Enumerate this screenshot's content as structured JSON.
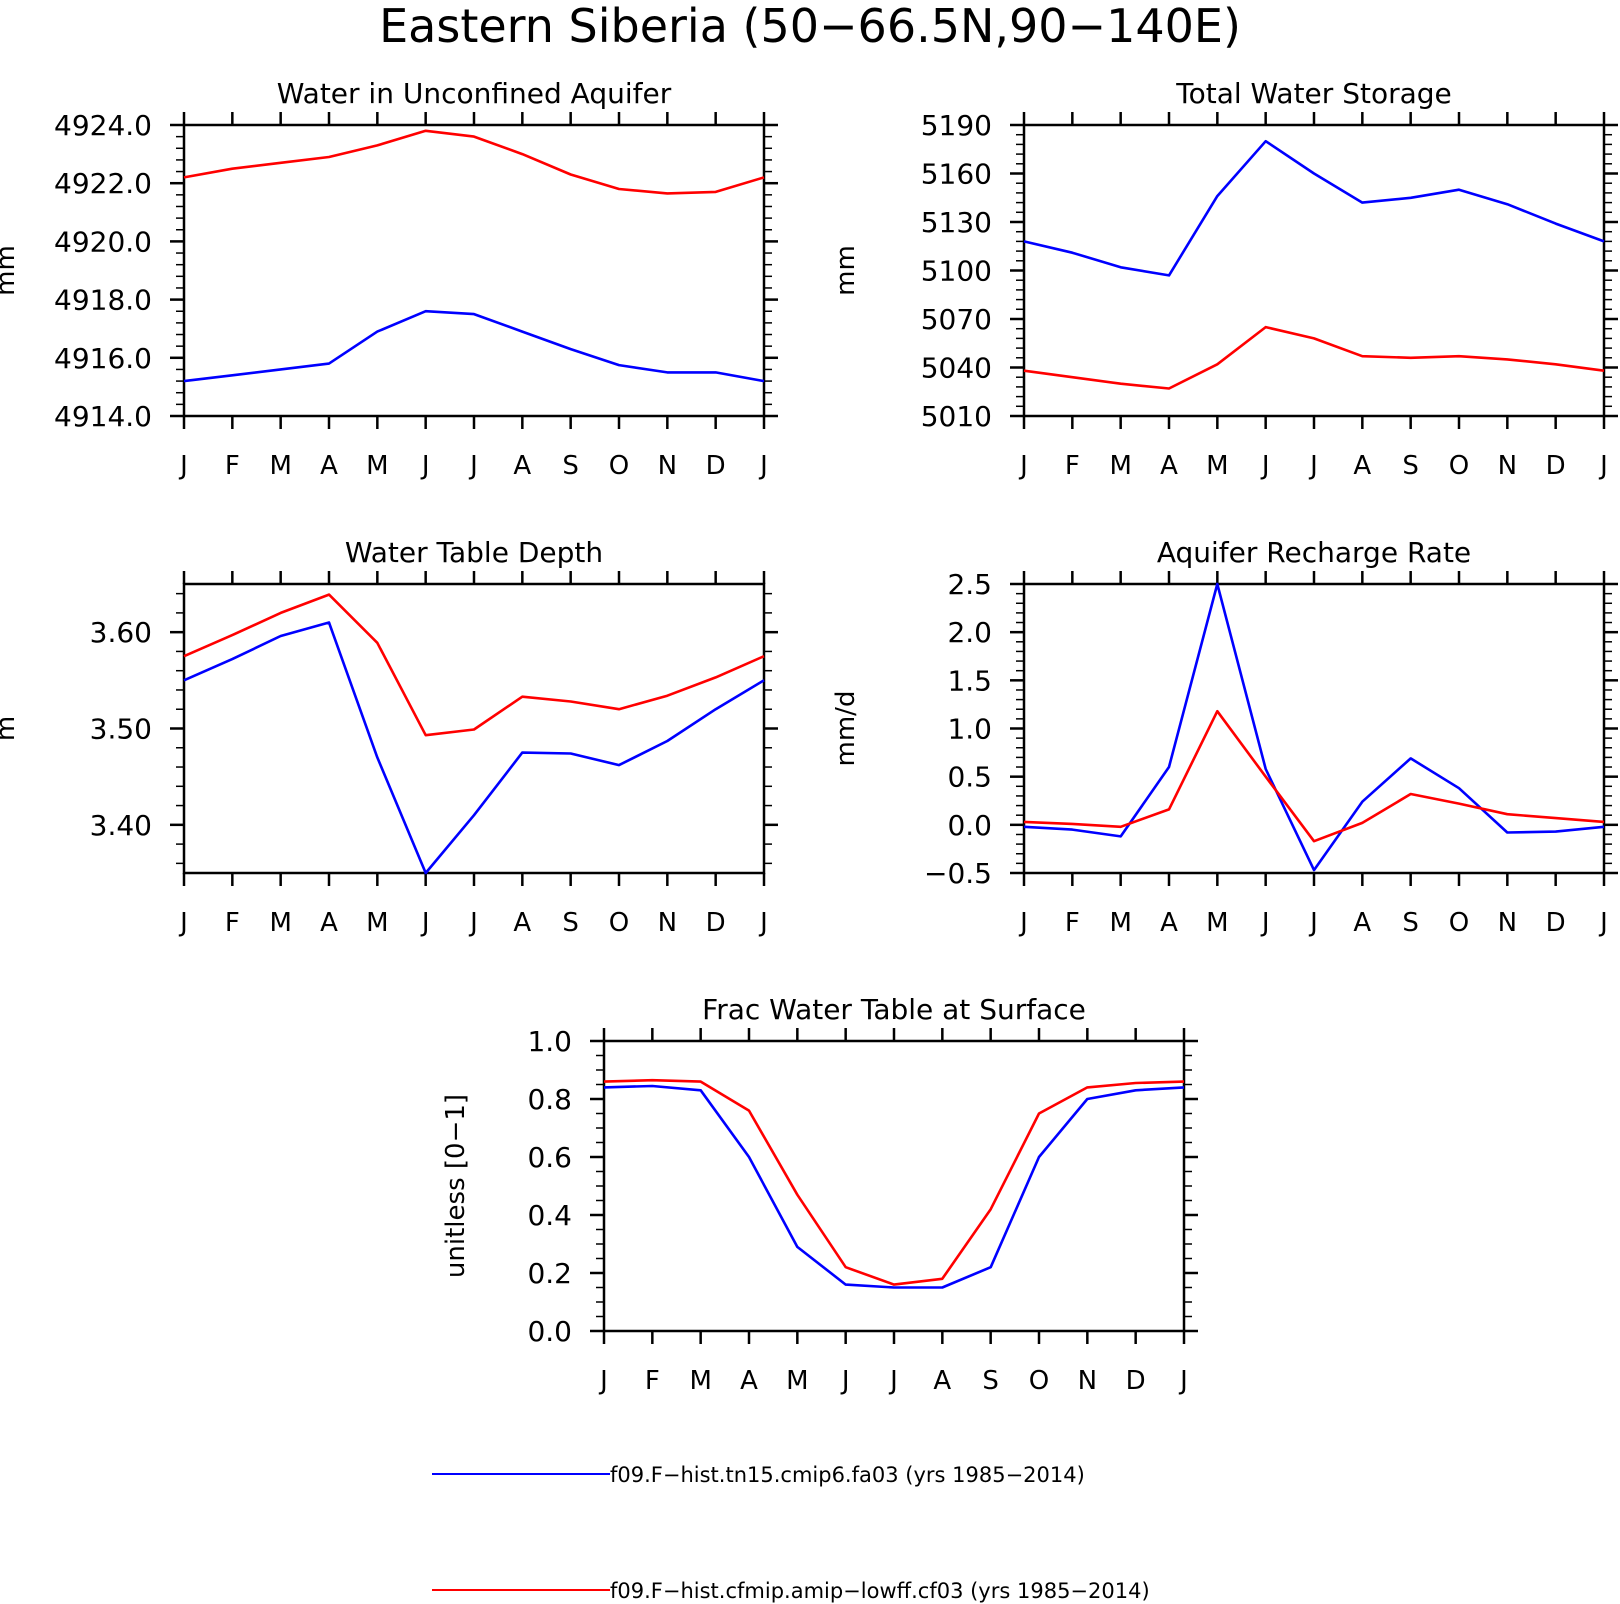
{
  "figure": {
    "title": "Eastern Siberia (50−66.5N,90−140E)"
  },
  "months": [
    "J",
    "F",
    "M",
    "A",
    "M",
    "J",
    "J",
    "A",
    "S",
    "O",
    "N",
    "D",
    "J"
  ],
  "series_styles": [
    {
      "id": "fa03",
      "color": "#0000ff"
    },
    {
      "id": "cf03",
      "color": "#ff0000"
    }
  ],
  "legend": {
    "entries": [
      {
        "label": "f09.F−hist.tn15.cmip6.fa03 (yrs 1985−2014)",
        "color": "#0000ff"
      },
      {
        "label": "f09.F−hist.cfmip.amip−lowff.cf03 (yrs 1985−2014)",
        "color": "#ff0000"
      }
    ]
  },
  "chart_data": [
    {
      "type": "line",
      "title": "Water in Unconfined Aquifer",
      "xlabel": "",
      "ylabel": "mm",
      "x": [
        "J",
        "F",
        "M",
        "A",
        "M",
        "J",
        "J",
        "A",
        "S",
        "O",
        "N",
        "D",
        "J"
      ],
      "ylim": [
        4914.0,
        4924.0
      ],
      "yticks": [
        4914.0,
        4916.0,
        4918.0,
        4920.0,
        4922.0,
        4924.0
      ],
      "ytick_labels": [
        "4914.0",
        "4916.0",
        "4918.0",
        "4920.0",
        "4922.0",
        "4924.0"
      ],
      "minor_per_major": 5,
      "grid": false,
      "series": [
        {
          "name": "f09.F−hist.tn15.cmip6.fa03 (yrs 1985−2014)",
          "color": "#0000ff",
          "values": [
            4915.2,
            4915.4,
            4915.6,
            4915.8,
            4916.9,
            4917.6,
            4917.5,
            4916.9,
            4916.3,
            4915.75,
            4915.5,
            4915.5,
            4915.2
          ]
        },
        {
          "name": "f09.F−hist.cfmip.amip−lowff.cf03 (yrs 1985−2014)",
          "color": "#ff0000",
          "values": [
            4922.2,
            4922.5,
            4922.7,
            4922.9,
            4923.3,
            4923.8,
            4923.6,
            4923.0,
            4922.3,
            4921.8,
            4921.65,
            4921.7,
            4922.2
          ]
        }
      ]
    },
    {
      "type": "line",
      "title": "Total Water Storage",
      "xlabel": "",
      "ylabel": "mm",
      "x": [
        "J",
        "F",
        "M",
        "A",
        "M",
        "J",
        "J",
        "A",
        "S",
        "O",
        "N",
        "D",
        "J"
      ],
      "ylim": [
        5010,
        5190
      ],
      "yticks": [
        5010,
        5040,
        5070,
        5100,
        5130,
        5160,
        5190
      ],
      "ytick_labels": [
        "5010",
        "5040",
        "5070",
        "5100",
        "5130",
        "5160",
        "5190"
      ],
      "minor_per_major": 5,
      "grid": false,
      "series": [
        {
          "name": "f09.F−hist.tn15.cmip6.fa03 (yrs 1985−2014)",
          "color": "#0000ff",
          "values": [
            5118,
            5111,
            5102,
            5097,
            5146,
            5180,
            5160,
            5142,
            5145,
            5150,
            5141,
            5129,
            5118
          ]
        },
        {
          "name": "f09.F−hist.cfmip.amip−lowff.cf03 (yrs 1985−2014)",
          "color": "#ff0000",
          "values": [
            5038,
            5034,
            5030,
            5027,
            5042,
            5065,
            5058,
            5047,
            5046,
            5047,
            5045,
            5042,
            5038
          ]
        }
      ]
    },
    {
      "type": "line",
      "title": "Water Table Depth",
      "xlabel": "",
      "ylabel": "m",
      "x": [
        "J",
        "F",
        "M",
        "A",
        "M",
        "J",
        "J",
        "A",
        "S",
        "O",
        "N",
        "D",
        "J"
      ],
      "ylim": [
        3.35,
        3.65
      ],
      "yticks": [
        3.4,
        3.5,
        3.6
      ],
      "ytick_labels": [
        "3.40",
        "3.50",
        "3.60"
      ],
      "minor_per_major": 5,
      "grid": false,
      "series": [
        {
          "name": "f09.F−hist.tn15.cmip6.fa03 (yrs 1985−2014)",
          "color": "#0000ff",
          "values": [
            3.55,
            3.572,
            3.596,
            3.61,
            3.47,
            3.35,
            3.41,
            3.475,
            3.474,
            3.462,
            3.487,
            3.52,
            3.55
          ]
        },
        {
          "name": "f09.F−hist.cfmip.amip−lowff.cf03 (yrs 1985−2014)",
          "color": "#ff0000",
          "values": [
            3.575,
            3.597,
            3.62,
            3.639,
            3.589,
            3.493,
            3.499,
            3.533,
            3.528,
            3.52,
            3.534,
            3.553,
            3.575
          ]
        }
      ]
    },
    {
      "type": "line",
      "title": "Aquifer Recharge Rate",
      "xlabel": "",
      "ylabel": "mm/d",
      "x": [
        "J",
        "F",
        "M",
        "A",
        "M",
        "J",
        "J",
        "A",
        "S",
        "O",
        "N",
        "D",
        "J"
      ],
      "ylim": [
        -0.5,
        2.5
      ],
      "yticks": [
        -0.5,
        0.0,
        0.5,
        1.0,
        1.5,
        2.0,
        2.5
      ],
      "ytick_labels": [
        "−0.5",
        "0.0",
        "0.5",
        "1.0",
        "1.5",
        "2.0",
        "2.5"
      ],
      "minor_per_major": 5,
      "grid": false,
      "series": [
        {
          "name": "f09.F−hist.tn15.cmip6.fa03 (yrs 1985−2014)",
          "color": "#0000ff",
          "values": [
            -0.02,
            -0.05,
            -0.12,
            0.6,
            2.5,
            0.58,
            -0.47,
            0.24,
            0.69,
            0.38,
            -0.08,
            -0.07,
            -0.02
          ]
        },
        {
          "name": "f09.F−hist.cfmip.amip−lowff.cf03 (yrs 1985−2014)",
          "color": "#ff0000",
          "values": [
            0.03,
            0.01,
            -0.02,
            0.16,
            1.18,
            0.5,
            -0.17,
            0.02,
            0.32,
            0.22,
            0.11,
            0.07,
            0.03
          ]
        }
      ]
    },
    {
      "type": "line",
      "title": "Frac Water Table at Surface",
      "xlabel": "",
      "ylabel": "unitless [0−1]",
      "x": [
        "J",
        "F",
        "M",
        "A",
        "M",
        "J",
        "J",
        "A",
        "S",
        "O",
        "N",
        "D",
        "J"
      ],
      "ylim": [
        0.0,
        1.0
      ],
      "yticks": [
        0.0,
        0.2,
        0.4,
        0.6,
        0.8,
        1.0
      ],
      "ytick_labels": [
        "0.0",
        "0.2",
        "0.4",
        "0.6",
        "0.8",
        "1.0"
      ],
      "minor_per_major": 4,
      "grid": false,
      "series": [
        {
          "name": "f09.F−hist.tn15.cmip6.fa03 (yrs 1985−2014)",
          "color": "#0000ff",
          "values": [
            0.84,
            0.845,
            0.83,
            0.6,
            0.29,
            0.16,
            0.15,
            0.15,
            0.22,
            0.6,
            0.8,
            0.83,
            0.84
          ]
        },
        {
          "name": "f09.F−hist.cfmip.amip−lowff.cf03 (yrs 1985−2014)",
          "color": "#ff0000",
          "values": [
            0.86,
            0.865,
            0.86,
            0.76,
            0.47,
            0.22,
            0.16,
            0.18,
            0.42,
            0.75,
            0.84,
            0.855,
            0.86
          ]
        }
      ]
    }
  ]
}
